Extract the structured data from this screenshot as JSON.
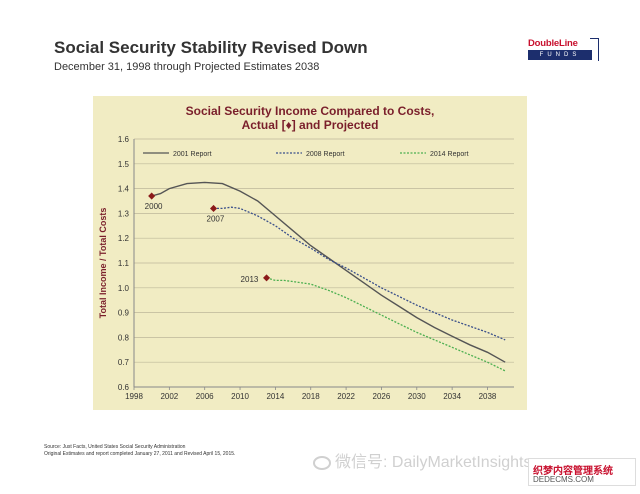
{
  "slide": {
    "title": "Social Security Stability Revised Down",
    "subtitle": "December 31, 1998 through Projected Estimates 2038"
  },
  "logo": {
    "name": "DoubleLine",
    "sub": "FUNDS",
    "brand_red": "#c8102e",
    "brand_navy": "#1c2e6d"
  },
  "source": {
    "line1": "Source:  Just Facts, United States Social Security Administration",
    "line2": "Original Estimates and report completed January 27, 2011 and Revised  April 15, 2015."
  },
  "watermark": {
    "text": "微信号: DailyMarketInsights",
    "icon": "wechat-icon"
  },
  "corner_badge": {
    "line1": "织梦内容管理系统",
    "line2": "DEDECMS.COM"
  },
  "chart_data": {
    "type": "line",
    "title": "Social Security Income Compared to Costs,",
    "subtitle": "Actual [♦] and Projected",
    "xlabel": "",
    "ylabel": "Total Income / Total Costs",
    "xlim": [
      1998,
      2041
    ],
    "ylim": [
      0.6,
      1.6
    ],
    "x_ticks": [
      1998,
      2002,
      2006,
      2010,
      2014,
      2018,
      2022,
      2026,
      2030,
      2034,
      2038
    ],
    "y_ticks": [
      0.6,
      0.7,
      0.8,
      0.9,
      1.0,
      1.1,
      1.2,
      1.3,
      1.4,
      1.5,
      1.6
    ],
    "y_tick_labels": [
      "0.6",
      "0.7",
      "0.8",
      "0.9",
      "1.0",
      "1.1",
      "1.2",
      "1.3",
      "1.4",
      "1.5",
      "1.6"
    ],
    "grid": "horizontal",
    "legend": "top",
    "plot_bg": "#f1ecc3",
    "series": [
      {
        "name": "2001 Report",
        "color": "#555555",
        "style": "solid",
        "points": [
          [
            2000,
            1.37
          ],
          [
            2001,
            1.38
          ],
          [
            2002,
            1.4
          ],
          [
            2004,
            1.42
          ],
          [
            2006,
            1.425
          ],
          [
            2008,
            1.42
          ],
          [
            2010,
            1.39
          ],
          [
            2012,
            1.35
          ],
          [
            2014,
            1.29
          ],
          [
            2016,
            1.23
          ],
          [
            2018,
            1.17
          ],
          [
            2020,
            1.12
          ],
          [
            2022,
            1.07
          ],
          [
            2024,
            1.02
          ],
          [
            2026,
            0.97
          ],
          [
            2028,
            0.925
          ],
          [
            2030,
            0.88
          ],
          [
            2032,
            0.84
          ],
          [
            2034,
            0.805
          ],
          [
            2036,
            0.77
          ],
          [
            2038,
            0.74
          ],
          [
            2040,
            0.7
          ]
        ]
      },
      {
        "name": "2008 Report",
        "color": "#3a4f8a",
        "style": "dotted",
        "points": [
          [
            2007,
            1.32
          ],
          [
            2008,
            1.32
          ],
          [
            2009,
            1.325
          ],
          [
            2010,
            1.32
          ],
          [
            2012,
            1.29
          ],
          [
            2014,
            1.25
          ],
          [
            2016,
            1.2
          ],
          [
            2018,
            1.16
          ],
          [
            2020,
            1.115
          ],
          [
            2022,
            1.08
          ],
          [
            2024,
            1.04
          ],
          [
            2026,
            1.0
          ],
          [
            2028,
            0.965
          ],
          [
            2030,
            0.93
          ],
          [
            2032,
            0.9
          ],
          [
            2034,
            0.87
          ],
          [
            2036,
            0.845
          ],
          [
            2038,
            0.82
          ],
          [
            2040,
            0.79
          ]
        ]
      },
      {
        "name": "2014 Report",
        "color": "#4caf50",
        "style": "dotted",
        "points": [
          [
            2013,
            1.04
          ],
          [
            2014,
            1.03
          ],
          [
            2015,
            1.03
          ],
          [
            2016,
            1.025
          ],
          [
            2018,
            1.015
          ],
          [
            2020,
            0.99
          ],
          [
            2022,
            0.96
          ],
          [
            2024,
            0.925
          ],
          [
            2026,
            0.89
          ],
          [
            2028,
            0.855
          ],
          [
            2030,
            0.82
          ],
          [
            2032,
            0.79
          ],
          [
            2034,
            0.76
          ],
          [
            2036,
            0.73
          ],
          [
            2038,
            0.7
          ],
          [
            2040,
            0.665
          ]
        ]
      }
    ],
    "actual_points": [
      {
        "label": "2000",
        "x": 2000,
        "y": 1.37
      },
      {
        "label": "2007",
        "x": 2007,
        "y": 1.32
      },
      {
        "label": "2013",
        "x": 2013,
        "y": 1.04
      }
    ],
    "marker_color": "#8b1a1a"
  }
}
